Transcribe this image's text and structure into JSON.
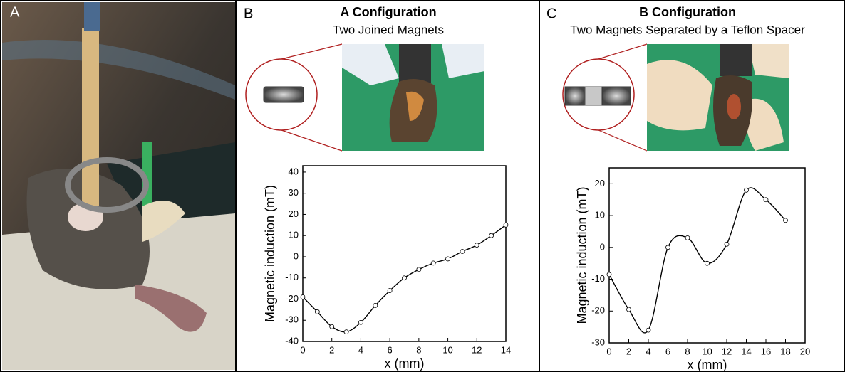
{
  "panel_a": {
    "label": "A"
  },
  "chart_data": [
    {
      "type": "line",
      "panel_label": "B",
      "title": "A Configuration",
      "subtitle": "Two Joined Magnets",
      "x_label": "x (mm)",
      "y_label": "Magnetic induction (mT)",
      "x": [
        0,
        1,
        2,
        3,
        4,
        5,
        6,
        7,
        8,
        9,
        10,
        11,
        12,
        13,
        14
      ],
      "values": [
        -19,
        -26,
        -33,
        -35.5,
        -31,
        -23,
        -16,
        -10,
        -6,
        -3,
        -1,
        2.5,
        5.5,
        10,
        15
      ],
      "color": "#000000",
      "markers": true,
      "xlim": [
        0,
        14
      ],
      "xticks": [
        0,
        2,
        4,
        6,
        8,
        10,
        12,
        14
      ],
      "ylim": [
        -40,
        43
      ],
      "yticks": [
        -40,
        -30,
        -20,
        -10,
        0,
        10,
        20,
        30,
        40
      ]
    },
    {
      "type": "line",
      "panel_label": "C",
      "title": "B Configuration",
      "subtitle": "Two Magnets Separated by a Teflon Spacer",
      "x_label": "x (mm)",
      "y_label": "Magnetic induction (mT)",
      "x": [
        0,
        2,
        4,
        6,
        8,
        10,
        12,
        14,
        16,
        18
      ],
      "values": [
        -8.5,
        -19.5,
        -26,
        0,
        3,
        -5,
        1,
        18,
        15,
        8.5
      ],
      "color": "#000000",
      "markers": true,
      "xlim": [
        0,
        20
      ],
      "xticks": [
        0,
        2,
        4,
        6,
        8,
        10,
        12,
        14,
        16,
        18,
        20
      ],
      "ylim": [
        -30,
        25
      ],
      "yticks": [
        -30,
        -20,
        -10,
        0,
        10,
        20
      ]
    }
  ]
}
